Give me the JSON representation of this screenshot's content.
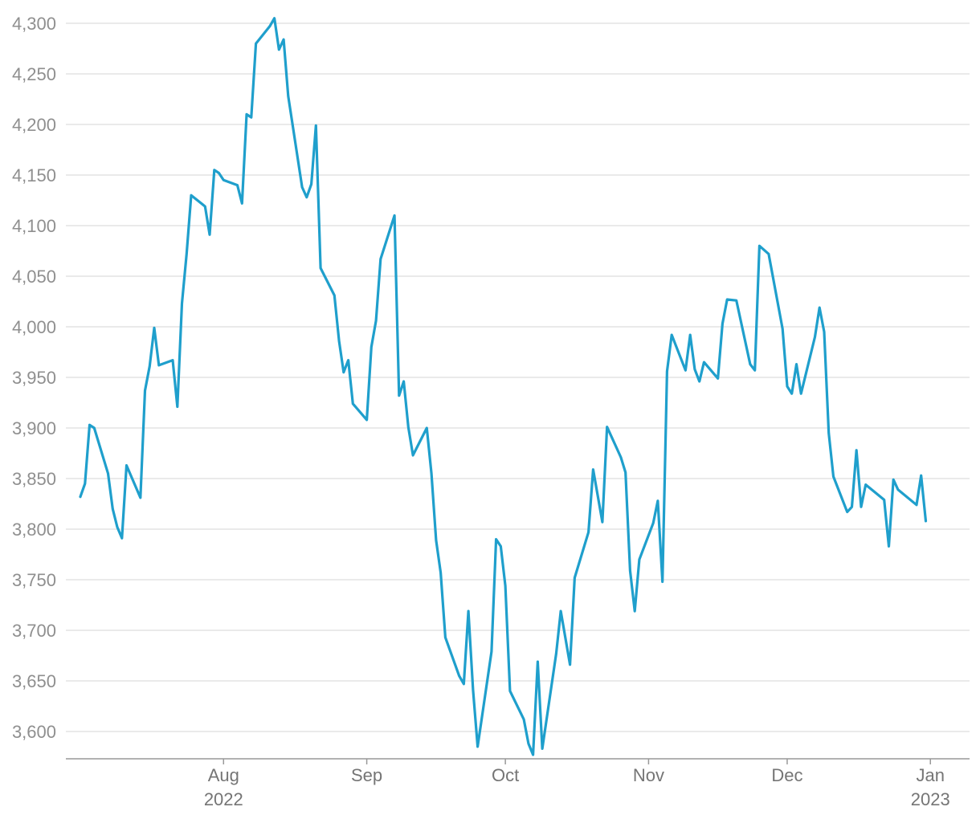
{
  "chart_data": {
    "type": "line",
    "title": "",
    "xlabel": "",
    "ylabel": "",
    "ylim": [
      3580,
      4305
    ],
    "xlim": [
      "2022-07-01",
      "2023-01-06"
    ],
    "grid": true,
    "legend": "none",
    "y_ticks": [
      {
        "value": 3600,
        "label": "3,600"
      },
      {
        "value": 3650,
        "label": "3,650"
      },
      {
        "value": 3700,
        "label": "3,700"
      },
      {
        "value": 3750,
        "label": "3,750"
      },
      {
        "value": 3800,
        "label": "3,800"
      },
      {
        "value": 3850,
        "label": "3,850"
      },
      {
        "value": 3900,
        "label": "3,900"
      },
      {
        "value": 3950,
        "label": "3,950"
      },
      {
        "value": 4000,
        "label": "4,000"
      },
      {
        "value": 4050,
        "label": "4,050"
      },
      {
        "value": 4100,
        "label": "4,100"
      },
      {
        "value": 4150,
        "label": "4,150"
      },
      {
        "value": 4200,
        "label": "4,200"
      },
      {
        "value": 4250,
        "label": "4,250"
      },
      {
        "value": 4300,
        "label": "4,300"
      }
    ],
    "x_ticks": [
      {
        "date": "2022-08-01",
        "label": "Aug",
        "sublabel": "2022"
      },
      {
        "date": "2022-09-01",
        "label": "Sep",
        "sublabel": ""
      },
      {
        "date": "2022-10-01",
        "label": "Oct",
        "sublabel": ""
      },
      {
        "date": "2022-11-01",
        "label": "Nov",
        "sublabel": ""
      },
      {
        "date": "2022-12-01",
        "label": "Dec",
        "sublabel": ""
      },
      {
        "date": "2023-01-01",
        "label": "Jan",
        "sublabel": "2023"
      }
    ],
    "series": [
      {
        "color": "#1f9fcc",
        "points": [
          [
            "2022-07-01",
            3832
          ],
          [
            "2022-07-02",
            3845
          ],
          [
            "2022-07-03",
            3903
          ],
          [
            "2022-07-04",
            3900
          ],
          [
            "2022-07-07",
            3855
          ],
          [
            "2022-07-08",
            3820
          ],
          [
            "2022-07-09",
            3802
          ],
          [
            "2022-07-10",
            3791
          ],
          [
            "2022-07-11",
            3863
          ],
          [
            "2022-07-14",
            3831
          ],
          [
            "2022-07-15",
            3937
          ],
          [
            "2022-07-16",
            3961
          ],
          [
            "2022-07-17",
            3999
          ],
          [
            "2022-07-18",
            3962
          ],
          [
            "2022-07-21",
            3967
          ],
          [
            "2022-07-22",
            3921
          ],
          [
            "2022-07-23",
            4023
          ],
          [
            "2022-07-24",
            4072
          ],
          [
            "2022-07-25",
            4130
          ],
          [
            "2022-07-28",
            4119
          ],
          [
            "2022-07-29",
            4091
          ],
          [
            "2022-07-30",
            4155
          ],
          [
            "2022-07-31",
            4152
          ],
          [
            "2022-08-01",
            4145
          ],
          [
            "2022-08-04",
            4140
          ],
          [
            "2022-08-05",
            4122
          ],
          [
            "2022-08-06",
            4210
          ],
          [
            "2022-08-07",
            4207
          ],
          [
            "2022-08-08",
            4280
          ],
          [
            "2022-08-11",
            4297
          ],
          [
            "2022-08-12",
            4305
          ],
          [
            "2022-08-13",
            4274
          ],
          [
            "2022-08-14",
            4284
          ],
          [
            "2022-08-15",
            4228
          ],
          [
            "2022-08-18",
            4138
          ],
          [
            "2022-08-19",
            4128
          ],
          [
            "2022-08-20",
            4141
          ],
          [
            "2022-08-21",
            4199
          ],
          [
            "2022-08-22",
            4058
          ],
          [
            "2022-08-25",
            4031
          ],
          [
            "2022-08-26",
            3986
          ],
          [
            "2022-08-27",
            3955
          ],
          [
            "2022-08-28",
            3967
          ],
          [
            "2022-08-29",
            3924
          ],
          [
            "2022-09-01",
            3908
          ],
          [
            "2022-09-02",
            3980
          ],
          [
            "2022-09-03",
            4006
          ],
          [
            "2022-09-04",
            4067
          ],
          [
            "2022-09-07",
            4110
          ],
          [
            "2022-09-08",
            3932
          ],
          [
            "2022-09-09",
            3946
          ],
          [
            "2022-09-10",
            3901
          ],
          [
            "2022-09-11",
            3873
          ],
          [
            "2022-09-14",
            3900
          ],
          [
            "2022-09-15",
            3855
          ],
          [
            "2022-09-16",
            3789
          ],
          [
            "2022-09-17",
            3757
          ],
          [
            "2022-09-18",
            3693
          ],
          [
            "2022-09-21",
            3655
          ],
          [
            "2022-09-22",
            3647
          ],
          [
            "2022-09-23",
            3719
          ],
          [
            "2022-09-24",
            3641
          ],
          [
            "2022-09-25",
            3585
          ],
          [
            "2022-09-28",
            3679
          ],
          [
            "2022-09-29",
            3790
          ],
          [
            "2022-09-30",
            3783
          ],
          [
            "2022-10-01",
            3744
          ],
          [
            "2022-10-02",
            3640
          ],
          [
            "2022-10-05",
            3612
          ],
          [
            "2022-10-06",
            3588
          ],
          [
            "2022-10-07",
            3577
          ],
          [
            "2022-10-08",
            3669
          ],
          [
            "2022-10-09",
            3583
          ],
          [
            "2022-10-12",
            3677
          ],
          [
            "2022-10-13",
            3719
          ],
          [
            "2022-10-15",
            3666
          ],
          [
            "2022-10-16",
            3752
          ],
          [
            "2022-10-19",
            3797
          ],
          [
            "2022-10-20",
            3859
          ],
          [
            "2022-10-22",
            3807
          ],
          [
            "2022-10-23",
            3901
          ],
          [
            "2022-10-26",
            3871
          ],
          [
            "2022-10-27",
            3856
          ],
          [
            "2022-10-28",
            3759
          ],
          [
            "2022-10-29",
            3719
          ],
          [
            "2022-10-30",
            3770
          ],
          [
            "2022-11-02",
            3806
          ],
          [
            "2022-11-03",
            3828
          ],
          [
            "2022-11-04",
            3748
          ],
          [
            "2022-11-05",
            3956
          ],
          [
            "2022-11-06",
            3992
          ],
          [
            "2022-11-09",
            3957
          ],
          [
            "2022-11-10",
            3992
          ],
          [
            "2022-11-11",
            3958
          ],
          [
            "2022-11-12",
            3946
          ],
          [
            "2022-11-13",
            3965
          ],
          [
            "2022-11-16",
            3949
          ],
          [
            "2022-11-17",
            4003
          ],
          [
            "2022-11-18",
            4027
          ],
          [
            "2022-11-20",
            4026
          ],
          [
            "2022-11-23",
            3963
          ],
          [
            "2022-11-24",
            3957
          ],
          [
            "2022-11-25",
            4080
          ],
          [
            "2022-11-27",
            4072
          ],
          [
            "2022-11-30",
            3998
          ],
          [
            "2022-12-01",
            3941
          ],
          [
            "2022-12-02",
            3934
          ],
          [
            "2022-12-03",
            3963
          ],
          [
            "2022-12-04",
            3934
          ],
          [
            "2022-12-07",
            3990
          ],
          [
            "2022-12-08",
            4019
          ],
          [
            "2022-12-09",
            3995
          ],
          [
            "2022-12-10",
            3895
          ],
          [
            "2022-12-11",
            3852
          ],
          [
            "2022-12-14",
            3817
          ],
          [
            "2022-12-15",
            3822
          ],
          [
            "2022-12-16",
            3878
          ],
          [
            "2022-12-17",
            3822
          ],
          [
            "2022-12-18",
            3844
          ],
          [
            "2022-12-22",
            3829
          ],
          [
            "2022-12-23",
            3783
          ],
          [
            "2022-12-24",
            3849
          ],
          [
            "2022-12-25",
            3839
          ],
          [
            "2022-12-29",
            3824
          ],
          [
            "2022-12-30",
            3853
          ],
          [
            "2022-12-31",
            3808
          ]
        ]
      }
    ]
  }
}
